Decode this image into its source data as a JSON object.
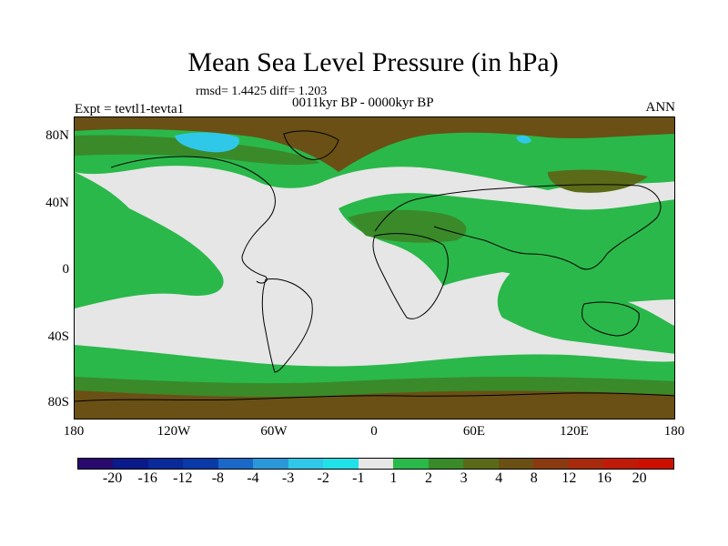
{
  "title": "Mean Sea Level Pressure (in hPa)",
  "stats_text": "rmsd= 1.4425 diff= 1.203",
  "period_text": "0011kyr BP - 0000kyr BP",
  "expt_text": "Expt = tevtl1-tevta1",
  "season_text": "ANN",
  "lat_labels": [
    "80N",
    "40N",
    "0",
    "40S",
    "80S"
  ],
  "lon_labels": [
    "180",
    "120W",
    "60W",
    "0",
    "60E",
    "120E",
    "180"
  ],
  "colorbar": {
    "labels": [
      "-20",
      "-16",
      "-12",
      "-8",
      "-4",
      "-3",
      "-2",
      "-1",
      "1",
      "2",
      "3",
      "4",
      "8",
      "12",
      "16",
      "20"
    ],
    "colors": [
      "#2a0a6e",
      "#0a1a8a",
      "#0a2a9a",
      "#0a3aa8",
      "#1a68c8",
      "#2a98d8",
      "#30c8e8",
      "#20e0e8",
      "#e6e6e6",
      "#2ab84a",
      "#3a8a2a",
      "#5a6a18",
      "#6a5014",
      "#8a3a10",
      "#a82a0c",
      "#c01a08",
      "#cc1000"
    ]
  },
  "map_colors": {
    "neutral": "#e6e6e6",
    "light_green": "#2ab84a",
    "dark_green": "#3a8a2a",
    "olive": "#5a6a18",
    "brown": "#6a5014",
    "cyan": "#30c8e8",
    "blue": "#1a68c8"
  }
}
